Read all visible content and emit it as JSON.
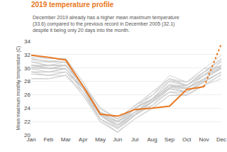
{
  "chart_data": {
    "type": "line",
    "title": "2019 temperature profile",
    "annotations": [
      "December 2019 already has a higher mean maximum temperature",
      "(33.6) compared to the previous record in December 2005 (32.1)",
      "despite it being only 20 days into the month."
    ],
    "ylabel": "Mean maximum monthly temperature (C)",
    "categories": [
      "Jan",
      "Feb",
      "Mar",
      "Apr",
      "May",
      "Jun",
      "Jul",
      "Aug",
      "Sep",
      "Oct",
      "Nov",
      "Dec"
    ],
    "ylim": [
      20,
      34
    ],
    "yticks": [
      20,
      22,
      24,
      26,
      28,
      30,
      32,
      34
    ],
    "grid": true,
    "series": [
      {
        "color": "#c8c8c8",
        "values": [
          31.2,
          31.1,
          30.8,
          27.2,
          23.3,
          22.1,
          24.1,
          25.2,
          27.6,
          27.1,
          28.2,
          31.1
        ]
      },
      {
        "color": "#c8c8c8",
        "values": [
          30.1,
          30.4,
          30.3,
          27.4,
          23.1,
          21.6,
          23.4,
          25.4,
          28.1,
          27.4,
          29.1,
          30.4
        ]
      },
      {
        "color": "#c8c8c8",
        "values": [
          30.4,
          30.1,
          29.9,
          26.9,
          22.4,
          21.1,
          23.1,
          25.1,
          27.1,
          27.1,
          28.4,
          30.1
        ]
      },
      {
        "color": "#c8c8c8",
        "values": [
          31.6,
          31.4,
          31.4,
          27.9,
          23.1,
          22.1,
          23.4,
          25.1,
          27.1,
          27.4,
          29.4,
          31.1
        ]
      },
      {
        "color": "#c8c8c8",
        "values": [
          29.4,
          29.4,
          29.9,
          26.4,
          22.1,
          20.4,
          23.1,
          24.4,
          26.4,
          26.4,
          28.1,
          29.4
        ]
      },
      {
        "color": "#c8c8c8",
        "values": [
          29.1,
          28.9,
          29.4,
          25.9,
          22.4,
          20.4,
          22.4,
          24.1,
          25.9,
          26.1,
          27.4,
          29.1
        ]
      },
      {
        "color": "#c8c8c8",
        "values": [
          29.9,
          29.4,
          29.4,
          26.9,
          22.9,
          21.4,
          23.1,
          24.9,
          27.4,
          26.4,
          28.4,
          29.9
        ]
      },
      {
        "color": "#c8c8c8",
        "values": [
          30.9,
          30.4,
          30.4,
          27.4,
          24.1,
          22.4,
          24.4,
          25.9,
          28.1,
          27.9,
          29.4,
          31.4
        ]
      },
      {
        "color": "#c8c8c8",
        "values": [
          30.4,
          29.9,
          29.9,
          26.9,
          23.4,
          21.9,
          24.1,
          25.4,
          27.4,
          26.9,
          28.1,
          30.4
        ]
      },
      {
        "color": "#c8c8c8",
        "values": [
          29.1,
          28.9,
          28.9,
          26.4,
          22.9,
          21.1,
          23.4,
          24.4,
          26.9,
          26.4,
          27.9,
          29.4
        ]
      },
      {
        "color": "#c8c8c8",
        "values": [
          30.1,
          29.9,
          30.4,
          27.4,
          22.9,
          21.4,
          23.4,
          24.9,
          27.1,
          27.4,
          28.9,
          30.1
        ]
      },
      {
        "color": "#c8c8c8",
        "values": [
          31.4,
          30.9,
          30.9,
          26.9,
          23.4,
          22.4,
          23.9,
          26.4,
          28.4,
          27.4,
          29.4,
          31.4
        ]
      },
      {
        "color": "#c8c8c8",
        "values": [
          31.9,
          31.4,
          31.4,
          27.9,
          23.9,
          22.4,
          24.4,
          25.9,
          28.9,
          27.9,
          29.9,
          31.9
        ]
      },
      {
        "color": "#c8c8c8",
        "values": [
          28.4,
          28.4,
          28.9,
          25.9,
          21.9,
          20.4,
          22.4,
          23.9,
          25.9,
          25.9,
          27.4,
          28.9
        ]
      },
      {
        "color": "#c8c8c8",
        "values": [
          29.4,
          29.4,
          29.9,
          26.9,
          22.9,
          21.1,
          22.9,
          24.9,
          26.4,
          26.4,
          27.9,
          29.4
        ]
      },
      {
        "color": "#c8c8c8",
        "values": [
          30.4,
          30.4,
          30.4,
          27.4,
          23.4,
          21.9,
          23.9,
          25.4,
          27.4,
          26.9,
          28.9,
          30.4
        ]
      },
      {
        "color": "#c8c8c8",
        "values": [
          30.9,
          30.9,
          31.4,
          26.9,
          22.9,
          21.4,
          23.9,
          25.4,
          27.9,
          27.4,
          28.9,
          30.9
        ]
      },
      {
        "color": "#c8c8c8",
        "values": [
          29.4,
          28.9,
          29.4,
          26.9,
          23.4,
          21.4,
          23.4,
          24.9,
          26.9,
          26.4,
          27.9,
          29.4
        ]
      },
      {
        "color": "#c8c8c8",
        "values": [
          30.4,
          29.9,
          29.9,
          26.9,
          22.9,
          21.9,
          23.4,
          25.4,
          27.4,
          26.9,
          28.9,
          29.9
        ]
      },
      {
        "color": "#c8c8c8",
        "values": [
          30.9,
          30.4,
          30.9,
          27.4,
          23.9,
          22.4,
          24.4,
          26.4,
          28.4,
          27.9,
          29.9,
          30.1
        ]
      },
      {
        "color": "#c8c8c8",
        "values": [
          29.4,
          29.4,
          29.9,
          26.4,
          22.4,
          20.9,
          22.9,
          24.9,
          26.9,
          26.4,
          27.9,
          29.4
        ]
      },
      {
        "color": "#c8c8c8",
        "values": [
          28.4,
          28.4,
          28.9,
          26.4,
          22.4,
          20.9,
          22.9,
          24.4,
          26.4,
          25.9,
          27.4,
          28.4
        ]
      },
      {
        "color": "#c8c8c8",
        "values": [
          29.9,
          29.9,
          30.4,
          26.9,
          22.9,
          21.4,
          23.4,
          25.4,
          26.9,
          26.9,
          28.4,
          29.9
        ]
      },
      {
        "color": "#c8c8c8",
        "values": [
          31.4,
          30.9,
          30.9,
          27.4,
          23.4,
          22.4,
          23.9,
          25.9,
          28.4,
          27.4,
          29.4,
          31.4
        ]
      },
      {
        "color": "#c8c8c8",
        "values": [
          30.4,
          30.4,
          30.4,
          27.4,
          23.4,
          21.9,
          23.9,
          25.4,
          27.4,
          27.4,
          29.4,
          30.4
        ]
      },
      {
        "color": "#E87722",
        "line_style": "solid",
        "values": [
          31.9,
          31.6,
          31.2,
          27.3,
          23.1,
          22.8,
          23.8,
          24.0,
          24.3,
          26.8,
          27.2,
          null
        ]
      },
      {
        "color": "#E87722",
        "line_style": "dotted",
        "values": [
          null,
          null,
          null,
          null,
          null,
          null,
          null,
          null,
          null,
          null,
          27.2,
          33.6
        ]
      }
    ]
  }
}
